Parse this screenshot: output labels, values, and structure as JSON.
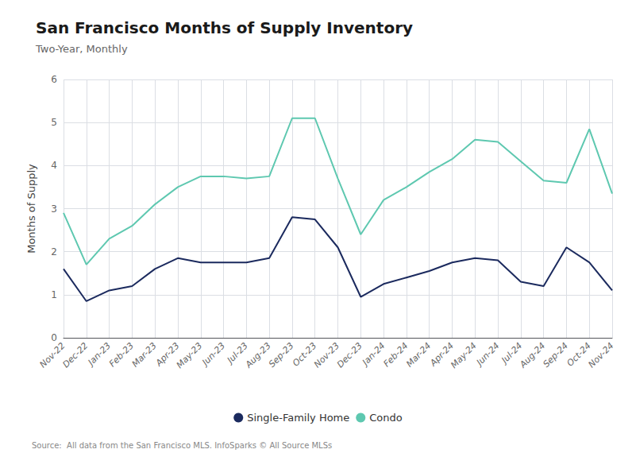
{
  "chart_data": {
    "type": "line",
    "title": "San Francisco Months of Supply Inventory",
    "subtitle": "Two-Year, Monthly",
    "ylabel": "Months of Supply",
    "source": "Source:  All data from the San Francisco MLS. InfoSparks © All Source MLSs",
    "categories": [
      "Nov-22",
      "Dec-22",
      "Jan-23",
      "Feb-23",
      "Mar-23",
      "Apr-23",
      "May-23",
      "Jun-23",
      "Jul-23",
      "Aug-23",
      "Sep-23",
      "Oct-23",
      "Nov-23",
      "Dec-23",
      "Jan-24",
      "Feb-24",
      "Mar-24",
      "Apr-24",
      "May-24",
      "Jun-24",
      "Jul-24",
      "Aug-24",
      "Sep-24",
      "Oct-24",
      "Nov-24"
    ],
    "series": [
      {
        "name": "Single-Family Home",
        "color": "#1b2a5e",
        "values": [
          1.6,
          0.85,
          1.1,
          1.2,
          1.6,
          1.85,
          1.75,
          1.75,
          1.75,
          1.85,
          2.8,
          2.75,
          2.1,
          0.95,
          1.25,
          1.4,
          1.55,
          1.75,
          1.85,
          1.8,
          1.3,
          1.2,
          2.1,
          1.75,
          1.1
        ]
      },
      {
        "name": "Condo",
        "color": "#5ec8b0",
        "values": [
          2.9,
          1.7,
          2.3,
          2.6,
          3.1,
          3.5,
          3.75,
          3.75,
          3.7,
          3.75,
          5.1,
          5.1,
          3.7,
          2.4,
          3.2,
          3.5,
          3.85,
          4.15,
          4.6,
          4.55,
          4.1,
          3.65,
          3.6,
          4.85,
          3.35
        ]
      }
    ],
    "ylim": [
      0,
      6
    ],
    "yticks": [
      0,
      1,
      2,
      3,
      4,
      5,
      6
    ],
    "grid": true,
    "legend": "bottom"
  }
}
